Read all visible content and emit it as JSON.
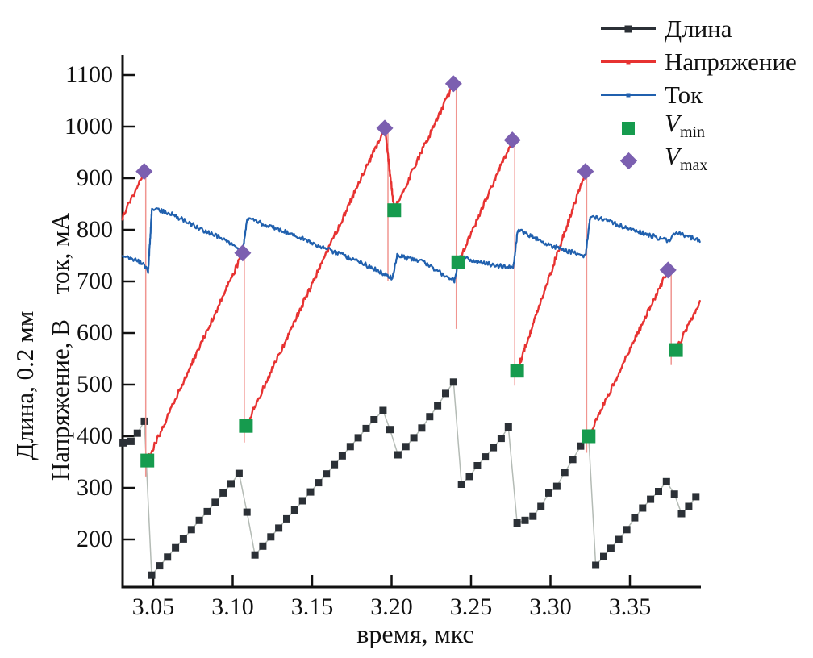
{
  "chart_data": {
    "type": "line",
    "title": "",
    "xlabel": "время, мкс",
    "ylabel_outer": "Длина, 0.2 мм",
    "ylabel_inner": "Напряжение, В    ток, мА",
    "x_range": [
      3.031,
      3.394
    ],
    "y_range": [
      110,
      1135
    ],
    "grid": false,
    "legend_position": "top-right-outside",
    "x_ticks": [
      3.05,
      3.1,
      3.15,
      3.2,
      3.25,
      3.3,
      3.35
    ],
    "x_tick_labels": [
      "3.05",
      "3.10",
      "3.15",
      "3.20",
      "3.25",
      "3.30",
      "3.35"
    ],
    "y_ticks": [
      200,
      300,
      400,
      500,
      600,
      700,
      800,
      900,
      1000,
      1100
    ],
    "y_tick_labels": [
      "200",
      "300",
      "400",
      "500",
      "600",
      "700",
      "800",
      "900",
      "1000",
      "1100"
    ],
    "axis_color": "#111111",
    "series": [
      {
        "name": "Длина",
        "type": "line+markers",
        "marker": "square",
        "color": "#2b3036",
        "line_color": "#b4bbb5",
        "points": [
          [
            3.031,
            387
          ],
          [
            3.036,
            390
          ],
          [
            3.04,
            406
          ],
          [
            3.0444,
            429
          ],
          [
            3.049,
            131
          ],
          [
            3.054,
            149
          ],
          [
            3.059,
            166
          ],
          [
            3.064,
            184
          ],
          [
            3.069,
            201
          ],
          [
            3.074,
            219
          ],
          [
            3.079,
            237
          ],
          [
            3.084,
            254
          ],
          [
            3.089,
            272
          ],
          [
            3.094,
            290
          ],
          [
            3.099,
            308
          ],
          [
            3.104,
            328
          ],
          [
            3.109,
            253
          ],
          [
            3.114,
            170
          ],
          [
            3.119,
            187
          ],
          [
            3.124,
            205
          ],
          [
            3.129,
            222
          ],
          [
            3.134,
            240
          ],
          [
            3.139,
            257
          ],
          [
            3.144,
            275
          ],
          [
            3.149,
            292
          ],
          [
            3.154,
            310
          ],
          [
            3.159,
            327
          ],
          [
            3.164,
            345
          ],
          [
            3.169,
            362
          ],
          [
            3.174,
            380
          ],
          [
            3.179,
            397
          ],
          [
            3.184,
            415
          ],
          [
            3.189,
            432
          ],
          [
            3.1946,
            450
          ],
          [
            3.199,
            413
          ],
          [
            3.204,
            364
          ],
          [
            3.209,
            380
          ],
          [
            3.214,
            397
          ],
          [
            3.219,
            416
          ],
          [
            3.224,
            438
          ],
          [
            3.229,
            459
          ],
          [
            3.234,
            483
          ],
          [
            3.239,
            505
          ],
          [
            3.244,
            307
          ],
          [
            3.249,
            322
          ],
          [
            3.254,
            343
          ],
          [
            3.259,
            360
          ],
          [
            3.264,
            378
          ],
          [
            3.269,
            396
          ],
          [
            3.2735,
            418
          ],
          [
            3.279,
            232
          ],
          [
            3.284,
            237
          ],
          [
            3.289,
            245
          ],
          [
            3.294,
            264
          ],
          [
            3.299,
            290
          ],
          [
            3.304,
            303
          ],
          [
            3.309,
            330
          ],
          [
            3.314,
            355
          ],
          [
            3.319,
            381
          ],
          [
            3.324,
            400
          ],
          [
            3.3285,
            150
          ],
          [
            3.3335,
            167
          ],
          [
            3.338,
            183
          ],
          [
            3.343,
            200
          ],
          [
            3.348,
            219
          ],
          [
            3.353,
            242
          ],
          [
            3.358,
            261
          ],
          [
            3.363,
            278
          ],
          [
            3.368,
            293
          ],
          [
            3.373,
            312
          ],
          [
            3.378,
            288
          ],
          [
            3.3825,
            250
          ],
          [
            3.387,
            264
          ],
          [
            3.3915,
            283
          ]
        ]
      },
      {
        "name": "Напряжение",
        "type": "noisy-line",
        "color": "#e73231",
        "drop_color": "#f09590",
        "noise": 5.5,
        "segments": [
          [
            [
              3.0307,
              825
            ],
            [
              3.0443,
              913
            ]
          ],
          [
            [
              3.0463,
              353
            ],
            [
              3.1063,
              755
            ]
          ],
          [
            [
              3.1083,
              420
            ],
            [
              3.1957,
              997
            ],
            [
              3.2017,
              838
            ],
            [
              3.239,
              1083
            ]
          ],
          [
            [
              3.242,
              737
            ],
            [
              3.276,
              974
            ]
          ],
          [
            [
              3.279,
              527
            ],
            [
              3.322,
              913
            ]
          ],
          [
            [
              3.324,
              400
            ],
            [
              3.374,
              722
            ]
          ],
          [
            [
              3.379,
              567
            ],
            [
              3.394,
              660
            ]
          ]
        ],
        "drop_lines": [
          [
            3.0453,
            913,
            322
          ],
          [
            3.1073,
            755,
            388
          ],
          [
            3.1977,
            997,
            700
          ],
          [
            3.2407,
            1083,
            608
          ],
          [
            3.2775,
            974,
            498
          ],
          [
            3.3228,
            913,
            368
          ],
          [
            3.376,
            722,
            538
          ]
        ]
      },
      {
        "name": "Ток",
        "type": "noisy-line",
        "color": "#2060ae",
        "noise": 4.5,
        "points": [
          [
            3.0307,
            752
          ],
          [
            3.04,
            741
          ],
          [
            3.0455,
            727
          ],
          [
            3.0468,
            720
          ],
          [
            3.0492,
            841
          ],
          [
            3.06,
            833
          ],
          [
            3.08,
            801
          ],
          [
            3.1,
            773
          ],
          [
            3.1062,
            757
          ],
          [
            3.1092,
            822
          ],
          [
            3.13,
            800
          ],
          [
            3.16,
            762
          ],
          [
            3.18,
            738
          ],
          [
            3.2005,
            706
          ],
          [
            3.2035,
            750
          ],
          [
            3.22,
            738
          ],
          [
            3.2395,
            700
          ],
          [
            3.2425,
            748
          ],
          [
            3.26,
            734
          ],
          [
            3.2765,
            726
          ],
          [
            3.2795,
            801
          ],
          [
            3.3,
            769
          ],
          [
            3.322,
            749
          ],
          [
            3.3252,
            828
          ],
          [
            3.34,
            812
          ],
          [
            3.36,
            792
          ],
          [
            3.3745,
            778
          ],
          [
            3.3775,
            795
          ],
          [
            3.385,
            788
          ],
          [
            3.394,
            781
          ]
        ]
      },
      {
        "name": "Vmin",
        "type": "scatter",
        "marker": "square",
        "color": "#169b4e",
        "points": [
          [
            3.0463,
            353
          ],
          [
            3.1083,
            420
          ],
          [
            3.2017,
            838
          ],
          [
            3.242,
            737
          ],
          [
            3.279,
            527
          ],
          [
            3.324,
            400
          ],
          [
            3.379,
            567
          ]
        ]
      },
      {
        "name": "Vmax",
        "type": "scatter",
        "marker": "diamond",
        "color": "#7b5fb0",
        "points": [
          [
            3.0443,
            913
          ],
          [
            3.1063,
            755
          ],
          [
            3.1957,
            997
          ],
          [
            3.239,
            1083
          ],
          [
            3.276,
            974
          ],
          [
            3.322,
            913
          ],
          [
            3.374,
            722
          ]
        ]
      }
    ]
  },
  "legend": {
    "items": [
      {
        "label": "Длина",
        "icon": "line-square",
        "series": 0
      },
      {
        "label": "Напряжение",
        "icon": "line-dot",
        "series": 1
      },
      {
        "label": "Ток",
        "icon": "line-dot",
        "series": 2
      },
      {
        "label_main": "V",
        "label_sub": "min",
        "icon": "square",
        "series": 3
      },
      {
        "label_main": "V",
        "label_sub": "max",
        "icon": "diamond",
        "series": 4
      }
    ]
  }
}
